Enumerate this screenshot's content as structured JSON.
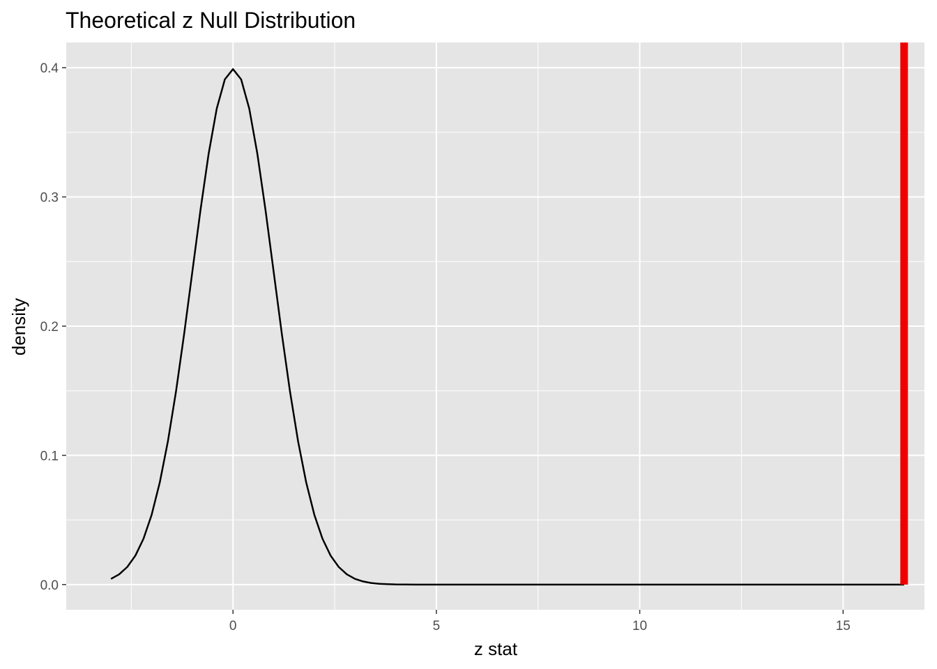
{
  "chart_data": {
    "type": "line",
    "title": "Theoretical z Null Distribution",
    "xlabel": "z stat",
    "ylabel": "density",
    "xlim": [
      -4.1,
      17.0
    ],
    "ylim": [
      -0.0195,
      0.4195
    ],
    "x_ticks": [
      0,
      5,
      10,
      15
    ],
    "x_tick_labels": [
      "0",
      "5",
      "10",
      "15"
    ],
    "y_ticks": [
      0.0,
      0.1,
      0.2,
      0.3,
      0.4
    ],
    "y_tick_labels": [
      "0.0",
      "0.1",
      "0.2",
      "0.3",
      "0.4"
    ],
    "grid": true,
    "series": [
      {
        "color": "#000000",
        "x": [
          -3.0,
          -2.8,
          -2.6,
          -2.4,
          -2.2,
          -2.0,
          -1.8,
          -1.6,
          -1.4,
          -1.2,
          -1.0,
          -0.8,
          -0.6,
          -0.4,
          -0.2,
          0.0,
          0.2,
          0.4,
          0.6,
          0.8,
          1.0,
          1.2,
          1.4,
          1.6,
          1.8,
          2.0,
          2.2,
          2.4,
          2.6,
          2.8,
          3.0,
          3.2,
          3.4,
          3.6,
          3.8,
          4.0,
          4.5,
          5.0,
          6.0,
          8.0,
          10.0,
          12.0,
          14.0,
          16.0,
          16.5
        ],
        "y": [
          0.0044,
          0.0079,
          0.0136,
          0.0224,
          0.0355,
          0.054,
          0.079,
          0.1109,
          0.1497,
          0.1942,
          0.242,
          0.2897,
          0.3332,
          0.3683,
          0.391,
          0.3989,
          0.391,
          0.3683,
          0.3332,
          0.2897,
          0.242,
          0.1942,
          0.1497,
          0.1109,
          0.079,
          0.054,
          0.0355,
          0.0224,
          0.0136,
          0.0079,
          0.0044,
          0.0024,
          0.0012,
          0.0006,
          0.0003,
          0.0001,
          0.0,
          0.0,
          0.0,
          0.0,
          0.0,
          0.0,
          0.0,
          0.0,
          0.0
        ]
      }
    ],
    "reference_line": {
      "orientation": "vertical",
      "x": 16.5,
      "color": "#ee0000"
    },
    "colors": {
      "panel_background": "#e5e5e5",
      "grid": "#ffffff",
      "curve": "#000000",
      "reference_line": "#ee0000",
      "tick_label": "#4d4d4d",
      "tick_mark": "#333333"
    }
  }
}
